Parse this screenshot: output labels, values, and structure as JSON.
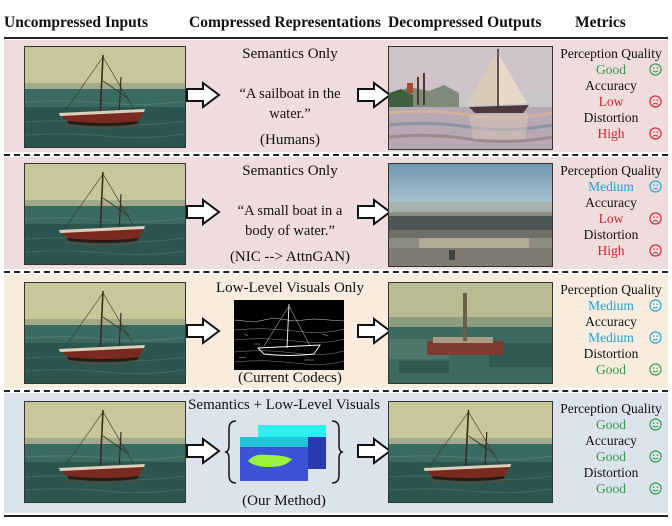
{
  "headers": [
    "Uncompressed Inputs",
    "Compressed Representations",
    "Decompressed Outputs",
    "Metrics"
  ],
  "rows": [
    {
      "bg": "#efdcdc",
      "title": "Semantics Only",
      "quote_line1": "“A sailboat in the",
      "quote_line2": "water.”",
      "caption": "(Humans)",
      "metrics": [
        {
          "label": "Perception Quality",
          "value": "Good",
          "level": "good",
          "face": "happy-icon"
        },
        {
          "label": "Accuracy",
          "value": "Low",
          "level": "low",
          "face": "sad-icon"
        },
        {
          "label": "Distortion",
          "value": "High",
          "level": "high",
          "face": "sad-icon"
        }
      ]
    },
    {
      "bg": "#efdcdc",
      "title": "Semantics Only",
      "quote_line1": "“A small boat in a",
      "quote_line2": "body of water.”",
      "caption": "(NIC --> AttnGAN)",
      "metrics": [
        {
          "label": "Perception Quality",
          "value": "Medium",
          "level": "medium",
          "face": "neutral-icon"
        },
        {
          "label": "Accuracy",
          "value": "Low",
          "level": "low",
          "face": "sad-icon"
        },
        {
          "label": "Distortion",
          "value": "High",
          "level": "high",
          "face": "sad-icon"
        }
      ]
    },
    {
      "bg": "#f7ecdd",
      "title": "Low-Level Visuals Only",
      "caption": "(Current Codecs)",
      "metrics": [
        {
          "label": "Perception Quality",
          "value": "Medium",
          "level": "medium",
          "face": "neutral-icon"
        },
        {
          "label": "Accuracy",
          "value": "Medium",
          "level": "medium",
          "face": "neutral-icon"
        },
        {
          "label": "Distortion",
          "value": "Good",
          "level": "good",
          "face": "happy-icon"
        }
      ]
    },
    {
      "bg": "#dde3ec",
      "title": "Semantics + Low-Level Visuals",
      "caption": "(Our Method)",
      "metrics": [
        {
          "label": "Perception Quality",
          "value": "Good",
          "level": "good",
          "face": "happy-icon"
        },
        {
          "label": "Accuracy",
          "value": "Good",
          "level": "good",
          "face": "happy-icon"
        },
        {
          "label": "Distortion",
          "value": "Good",
          "level": "good",
          "face": "happy-icon"
        }
      ]
    }
  ],
  "colors": {
    "good": "#2e9b47",
    "low": "#d31f2f",
    "high": "#d31f2f",
    "medium": "#1aa3d6"
  }
}
